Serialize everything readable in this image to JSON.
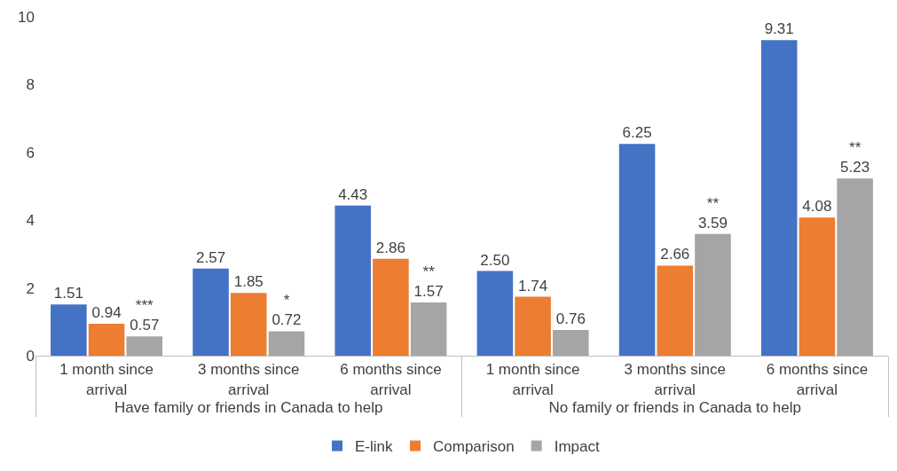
{
  "chart_data": {
    "type": "bar",
    "categories": [
      "1 month since arrival",
      "3 months since arrival",
      "6 months since arrival",
      "1 month since arrival",
      "3 months since arrival",
      "6 months since arrival"
    ],
    "annotations": [
      "Have family or friends in Canada to help",
      "No family or friends in Canada to help"
    ],
    "series": [
      {
        "name": "E-link",
        "color": "#4472c4",
        "values": [
          1.51,
          2.57,
          4.43,
          2.5,
          6.25,
          9.31
        ],
        "value_labels": [
          "1.51",
          "2.57",
          "4.43",
          "2.50",
          "6.25",
          "9.31"
        ]
      },
      {
        "name": "Comparison",
        "color": "#ed7d31",
        "values": [
          0.94,
          1.85,
          2.86,
          1.74,
          2.66,
          4.08
        ],
        "value_labels": [
          "0.94",
          "1.85",
          "2.86",
          "1.74",
          "2.66",
          "4.08"
        ]
      },
      {
        "name": "Impact",
        "color": "#a5a5a5",
        "values": [
          0.57,
          0.72,
          1.57,
          0.76,
          3.59,
          5.23
        ],
        "value_labels": [
          "***\n0.57",
          "*\n0.72",
          "**\n1.57",
          "0.76",
          "**\n3.59",
          "**\n5.23"
        ]
      }
    ],
    "ylim": [
      0,
      10
    ],
    "yticks": [
      0,
      2,
      4,
      6,
      8,
      10
    ],
    "grid": false,
    "legend": "bottom"
  }
}
